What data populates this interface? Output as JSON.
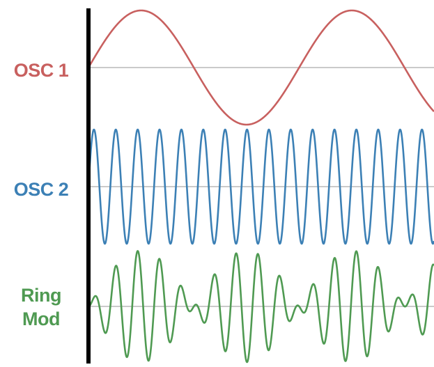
{
  "labels": {
    "osc1": "OSC 1",
    "osc2": "OSC 2",
    "ring_line1": "Ring",
    "ring_line2": "Mod"
  },
  "colors": {
    "osc1": "#c8605f",
    "osc2": "#3c80b5",
    "ring": "#4f9a52",
    "baseline": "#b8b8b8",
    "axis": "#000000"
  },
  "waves": {
    "osc1_cycles": 1.64,
    "osc2_cycles": 15.8
  }
}
